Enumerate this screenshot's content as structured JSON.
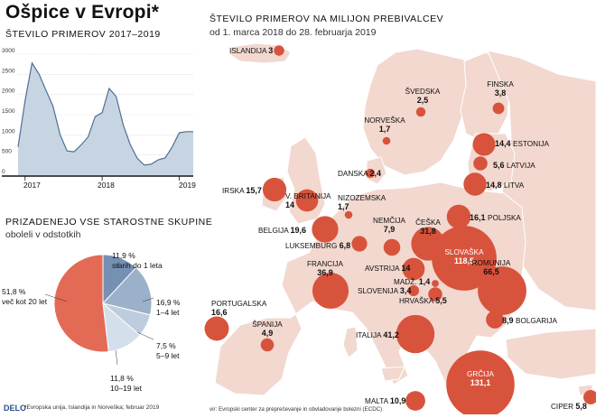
{
  "header": {
    "title": "Ošpice v Evropi*",
    "left_subtitle": "ŠTEVILO PRIMEROV 2017–2019"
  },
  "line_chart": {
    "yticks": [
      "3000",
      "2500",
      "2000",
      "1500",
      "1000",
      "500",
      "0"
    ],
    "xticks": [
      "2017",
      "2018",
      "2019"
    ]
  },
  "pie": {
    "title": "PRIZADENEJO VSE STAROSTNE SKUPINE",
    "subtitle": "oboleli v odstotkih",
    "labels": [
      {
        "pct": "11,9 %",
        "desc": "starih do 1 leta"
      },
      {
        "pct": "16,9 %",
        "desc": "1–4 let"
      },
      {
        "pct": "7,5 %",
        "desc": "5–9 let"
      },
      {
        "pct": "11,8 %",
        "desc": "10–19 let"
      },
      {
        "pct": "51,8 %",
        "desc": "več kot 20 let"
      }
    ]
  },
  "map": {
    "title": "ŠTEVILO PRIMEROV NA MILIJON PREBIVALCEV",
    "subtitle": "od 1. marca 2018 do 28. februarja 2019"
  },
  "footer": {
    "logo": "DELO",
    "note": "*Evropska unija, Islandija in Norveška; februar 2019",
    "source": "vir: Evropski center za preprečevanje in obvladovanje bolezni (ECDC)"
  },
  "colors": {
    "area_fill": "#c7d5e3",
    "area_line": "#4f6f93",
    "land": "#f2d8cf",
    "land_stroke": "#ffffff",
    "bubble": "#d8533c",
    "pie_main": "#e36a55",
    "pie_blue": [
      "#7590b3",
      "#9bb1ca",
      "#bdcddd",
      "#d3dfea"
    ]
  },
  "chart_data": [
    {
      "type": "area",
      "title": "ŠTEVILO PRIMEROV 2017–2019",
      "xlabel": "",
      "ylabel": "",
      "ylim": [
        0,
        3000
      ],
      "x_ticks": [
        "2017",
        "2018",
        "2019"
      ],
      "x": [
        0,
        1,
        2,
        3,
        4,
        5,
        6,
        7,
        8,
        9,
        10,
        11,
        12,
        13,
        14,
        15,
        16,
        17,
        18,
        19,
        20,
        21,
        22,
        23,
        24,
        25
      ],
      "values": [
        700,
        1850,
        2780,
        2500,
        2100,
        1700,
        1000,
        600,
        580,
        750,
        950,
        1450,
        1550,
        2150,
        1950,
        1250,
        760,
        420,
        250,
        270,
        380,
        430,
        700,
        1050,
        1080,
        1080
      ],
      "grid": true
    },
    {
      "type": "pie",
      "title": "PRIZADENEJO VSE STAROSTNE SKUPINE",
      "subtitle": "oboleli v odstotkih",
      "categories": [
        "starih do 1 leta",
        "1–4 let",
        "5–9 let",
        "10–19 let",
        "več kot 20 let"
      ],
      "values": [
        11.9,
        16.9,
        7.5,
        11.8,
        51.8
      ]
    },
    {
      "type": "scatter",
      "title": "ŠTEVILO PRIMEROV NA MILIJON PREBIVALCEV",
      "subtitle": "od 1. marca 2018 do 28. februarja 2019",
      "points": [
        {
          "name": "ISLANDIJA",
          "value": 3,
          "label": "3"
        },
        {
          "name": "ŠVEDSKA",
          "value": 2.5,
          "label": "2,5"
        },
        {
          "name": "FINSKA",
          "value": 3.8,
          "label": "3,8"
        },
        {
          "name": "NORVEŠKA",
          "value": 1.7,
          "label": "1,7"
        },
        {
          "name": "ESTONIJA",
          "value": 14.4,
          "label": "14,4"
        },
        {
          "name": "LATVIJA",
          "value": 5.6,
          "label": "5,6"
        },
        {
          "name": "LITVA",
          "value": 14.8,
          "label": "14,8"
        },
        {
          "name": "DANSKA",
          "value": 2.4,
          "label": "2,4"
        },
        {
          "name": "IRSKA",
          "value": 15.7,
          "label": "15,7"
        },
        {
          "name": "V. BRITANIJA",
          "value": 14,
          "label": "14"
        },
        {
          "name": "NIZOZEMSKA",
          "value": 1.7,
          "label": "1,7"
        },
        {
          "name": "BELGIJA",
          "value": 19.6,
          "label": "19,6"
        },
        {
          "name": "LUKSEMBURG",
          "value": 6.8,
          "label": "6,8"
        },
        {
          "name": "NEMČIJA",
          "value": 7.9,
          "label": "7,9"
        },
        {
          "name": "ČEŠKA",
          "value": 31.8,
          "label": "31,8"
        },
        {
          "name": "POLJSKA",
          "value": 16.1,
          "label": "16,1"
        },
        {
          "name": "SLOVAŠKA",
          "value": 118.5,
          "label": "118,5"
        },
        {
          "name": "FRANCIJA",
          "value": 36.9,
          "label": "36,9"
        },
        {
          "name": "AVSTRIJA",
          "value": 14,
          "label": "14"
        },
        {
          "name": "MADŽ.",
          "value": 1.4,
          "label": "1,4"
        },
        {
          "name": "SLOVENIJA",
          "value": 3.4,
          "label": "3,4"
        },
        {
          "name": "HRVAŠKA",
          "value": 5.5,
          "label": "5,5"
        },
        {
          "name": "ROMUNIJA",
          "value": 66.5,
          "label": "66,5"
        },
        {
          "name": "PORTUGALSKA",
          "value": 16.6,
          "label": "16,6"
        },
        {
          "name": "ŠPANIJA",
          "value": 4.9,
          "label": "4,9"
        },
        {
          "name": "ITALIJA",
          "value": 41.2,
          "label": "41,2"
        },
        {
          "name": "BOLGARIJA",
          "value": 8.9,
          "label": "8,9"
        },
        {
          "name": "GRČIJA",
          "value": 131.1,
          "label": "131,1"
        },
        {
          "name": "MALTA",
          "value": 10.9,
          "label": "10,9"
        },
        {
          "name": "CIPER",
          "value": 5.8,
          "label": "5,8"
        }
      ]
    }
  ]
}
